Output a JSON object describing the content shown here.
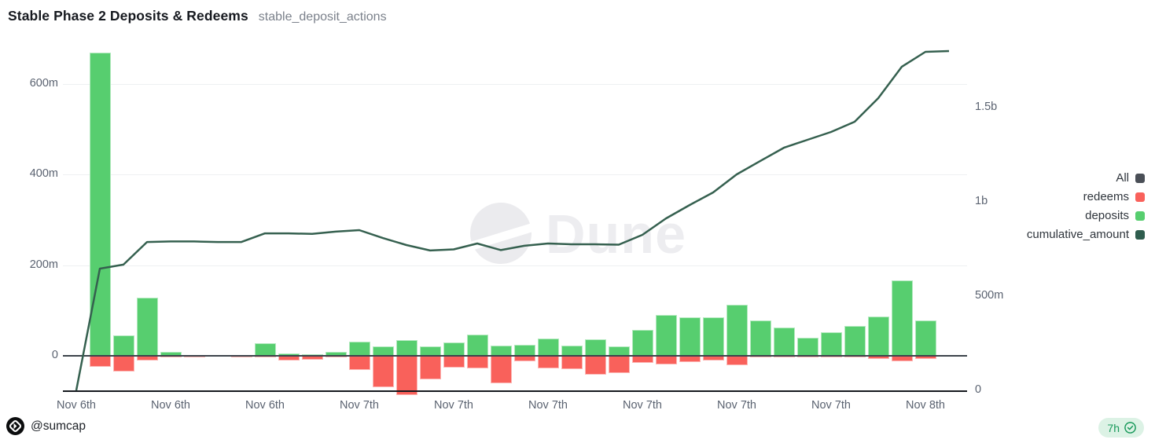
{
  "header": {
    "title": "Stable Phase 2 Deposits & Redeems",
    "query_name": "stable_deposit_actions"
  },
  "watermark": {
    "label": "Dune"
  },
  "legend": {
    "items": [
      {
        "label": "All",
        "color": "#4a4f57"
      },
      {
        "label": "redeems",
        "color": "#f9615b"
      },
      {
        "label": "deposits",
        "color": "#57ce6f"
      },
      {
        "label": "cumulative_amount",
        "color": "#2f5d4e"
      }
    ]
  },
  "axes": {
    "left": {
      "ticks": [
        {
          "label": "0",
          "value": 0
        },
        {
          "label": "200m",
          "value": 200
        },
        {
          "label": "400m",
          "value": 400
        },
        {
          "label": "600m",
          "value": 600
        }
      ]
    },
    "right": {
      "ticks": [
        {
          "label": "0",
          "value": 0
        },
        {
          "label": "500m",
          "value": 500
        },
        {
          "label": "1b",
          "value": 1000
        },
        {
          "label": "1.5b",
          "value": 1500
        }
      ]
    },
    "x": {
      "tick_labels": [
        "Nov 6th",
        "Nov 6th",
        "Nov 6th",
        "Nov 7th",
        "Nov 7th",
        "Nov 7th",
        "Nov 7th",
        "Nov 7th",
        "Nov 7th",
        "Nov 8th"
      ],
      "tick_category_index": [
        0,
        4,
        8,
        12,
        16,
        20,
        24,
        28,
        32,
        36
      ]
    }
  },
  "chart_data": {
    "type": "bar+line combo, dual axis (values in millions)",
    "categories_count": 38,
    "series": [
      {
        "name": "deposits",
        "type": "bar",
        "axis": "left",
        "color": "#57ce6f",
        "values": [
          0,
          670,
          45,
          128,
          8,
          2,
          0,
          0,
          28,
          5,
          3,
          9,
          31,
          21,
          35,
          21,
          30,
          47,
          23,
          24,
          38,
          23,
          37,
          21,
          57,
          90,
          85,
          85,
          113,
          78,
          63,
          40,
          52,
          66,
          87,
          167,
          78,
          0
        ]
      },
      {
        "name": "redeems",
        "type": "bar",
        "axis": "left",
        "color": "#f9615b",
        "values": [
          0,
          -25,
          -35,
          -10,
          -3,
          -2,
          0,
          -2,
          -2,
          -10,
          -8,
          -2,
          -32,
          -69,
          -86,
          -52,
          -26,
          -28,
          -61,
          -12,
          -28,
          -30,
          -42,
          -38,
          -16,
          -19,
          -14,
          -10,
          -21,
          -4,
          -3,
          -2,
          -2,
          -3,
          -7,
          -12,
          -7,
          0
        ]
      },
      {
        "name": "cumulative_amount",
        "type": "line",
        "axis": "right",
        "color": "#2f5d4e",
        "values": [
          0,
          646,
          667,
          787,
          790,
          790,
          787,
          787,
          833,
          833,
          830,
          842,
          850,
          808,
          771,
          742,
          748,
          779,
          744,
          767,
          779,
          775,
          775,
          773,
          825,
          912,
          983,
          1050,
          1146,
          1217,
          1287,
          1329,
          1371,
          1425,
          1550,
          1717,
          1796,
          1800
        ]
      }
    ],
    "title": "Stable Phase 2 Deposits & Redeems",
    "left_axis_ticks": [
      "0",
      "200m",
      "400m",
      "600m"
    ],
    "right_axis_ticks": [
      "0",
      "500m",
      "1b",
      "1.5b"
    ],
    "left_axis_range_m": [
      -80,
      690
    ],
    "right_axis_range_m": [
      0,
      1830
    ],
    "grid": "horizontal only",
    "legend_position": "right"
  },
  "footer": {
    "handle": "@sumcap",
    "badge": {
      "label": "7h",
      "icon": "verified-check"
    }
  }
}
